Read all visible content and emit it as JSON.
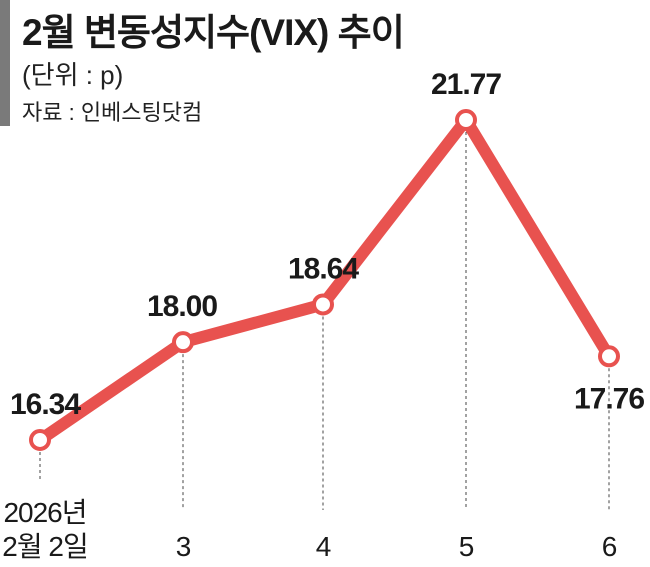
{
  "chart_data": {
    "type": "line",
    "title": "2월 변동성지수(VIX) 추이",
    "unit": "(단위 : p)",
    "source": "자료 : 인베스팅닷컴",
    "categories": [
      [
        "2026년",
        "2월 2일"
      ],
      [
        "3"
      ],
      [
        "4"
      ],
      [
        "5"
      ],
      [
        "6"
      ]
    ],
    "values": [
      16.34,
      18.0,
      18.64,
      21.77,
      17.76
    ],
    "value_labels": [
      "16.34",
      "18.00",
      "18.64",
      "21.77",
      "17.76"
    ],
    "xlabel": "",
    "ylabel": "",
    "grid": false,
    "color": "#e8524f"
  }
}
